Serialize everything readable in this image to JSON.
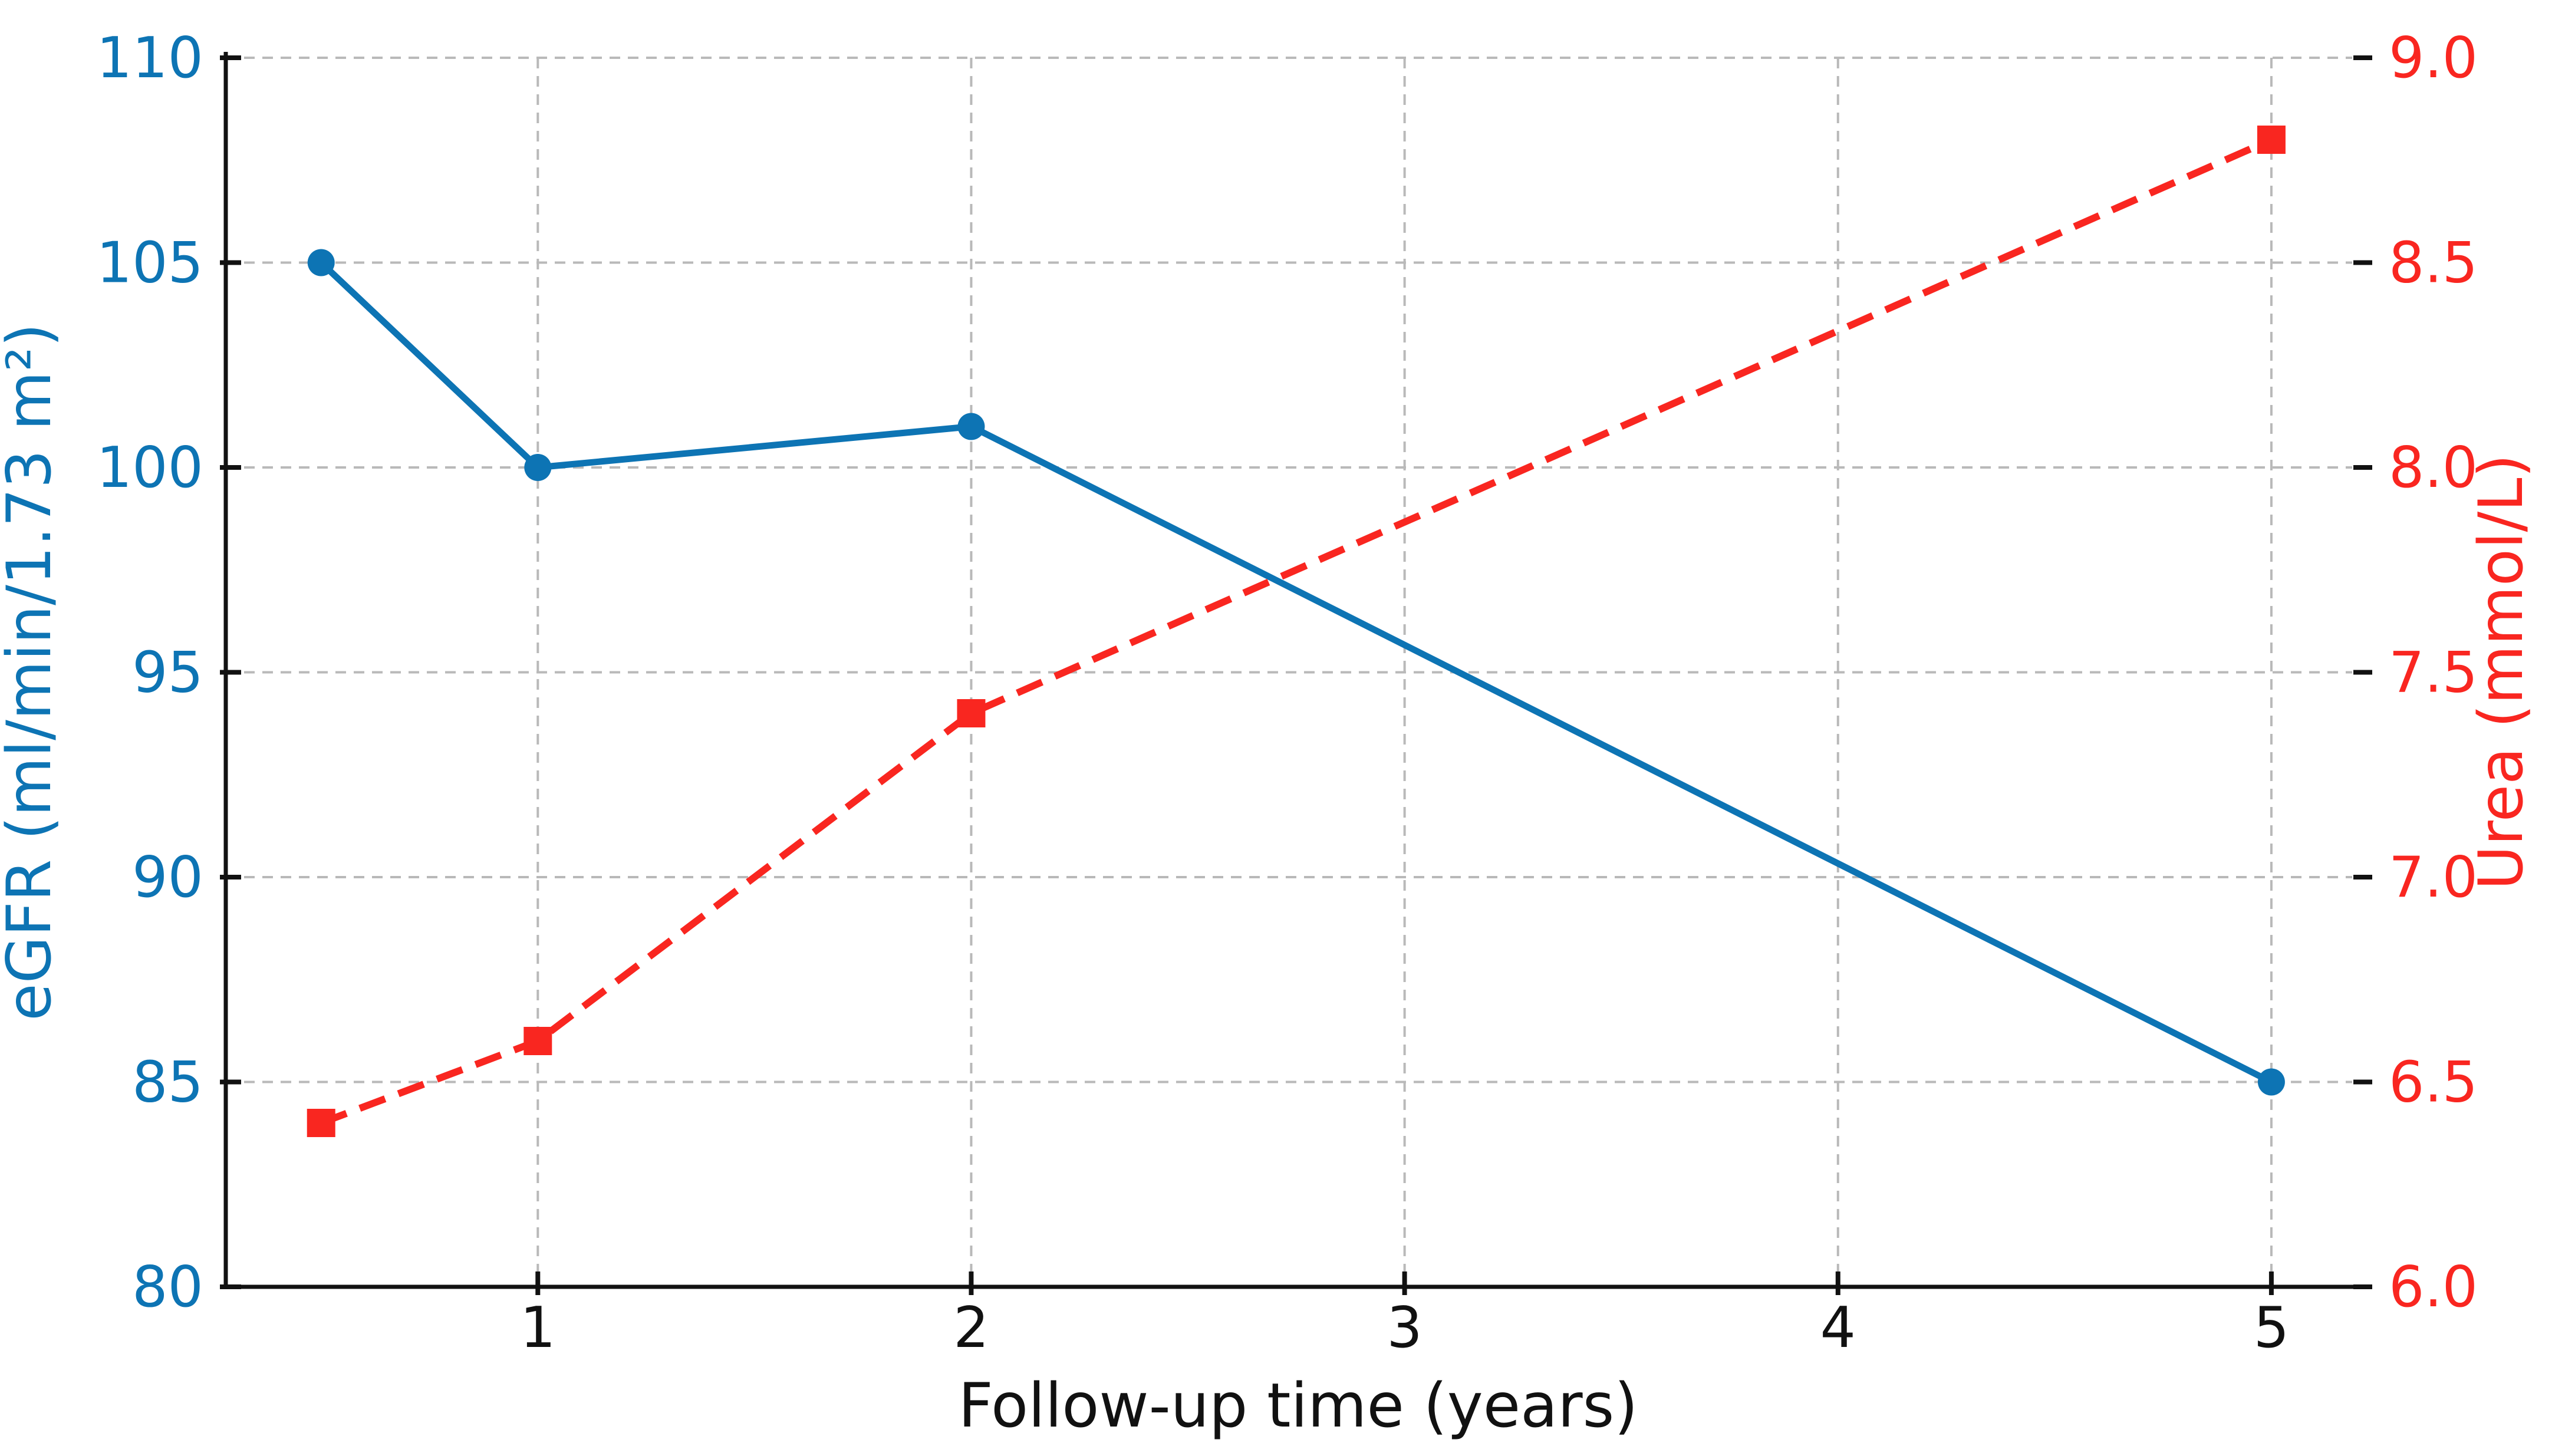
{
  "chart_data": {
    "type": "line",
    "title": "",
    "xlabel": "Follow-up time (years)",
    "ylabel_left": "eGFR (ml/min/1.73 m²)",
    "ylabel_right": "Urea (mmol/L)",
    "x": [
      0.5,
      1,
      2,
      5
    ],
    "series": [
      {
        "name": "eGFR",
        "axis": "left",
        "color": "#0d74b4",
        "marker": "circle",
        "line_style": "solid",
        "values": [
          105,
          100,
          101,
          85
        ]
      },
      {
        "name": "Urea",
        "axis": "right",
        "color": "#f92620",
        "marker": "square",
        "line_style": "dashed",
        "values": [
          6.4,
          6.6,
          7.4,
          8.8
        ]
      }
    ],
    "xlim": [
      0.28,
      5.23
    ],
    "ylim_left": [
      80,
      110
    ],
    "ylim_right": [
      6.0,
      9.0
    ],
    "xticks": [
      "1",
      "2",
      "3",
      "4",
      "5"
    ],
    "xtick_values": [
      1,
      2,
      3,
      4,
      5
    ],
    "yticks_left": [
      "80",
      "85",
      "90",
      "95",
      "100",
      "105",
      "110"
    ],
    "ytick_values_left": [
      80,
      85,
      90,
      95,
      100,
      105,
      110
    ],
    "yticks_right": [
      "6.0",
      "6.5",
      "7.0",
      "7.5",
      "8.0",
      "8.5",
      "9.0"
    ],
    "ytick_values_right": [
      6.0,
      6.5,
      7.0,
      7.5,
      8.0,
      8.5,
      9.0
    ],
    "grid": true,
    "legend_position": "none",
    "colors": {
      "egfr_blue": "#0d74b4",
      "urea_red": "#f92620",
      "gridline_gray": "#b9b9b9",
      "axis_black": "#111111"
    }
  }
}
